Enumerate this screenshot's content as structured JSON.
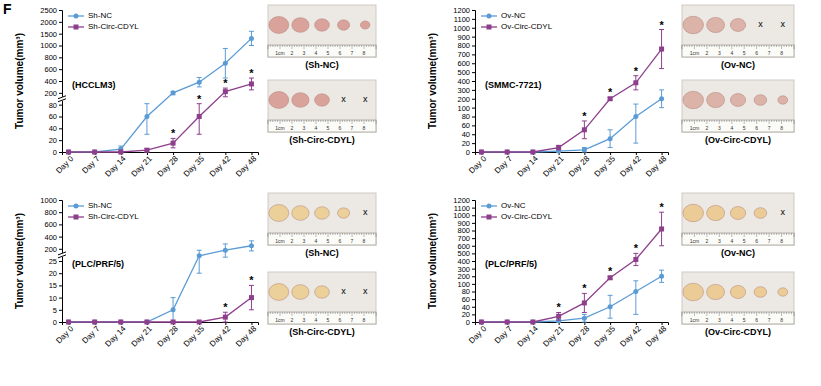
{
  "figure_label": "F",
  "chart_data": [
    {
      "type": "line",
      "title": "(HCCLM3)",
      "y_label": "Tumor volume(mm³)",
      "categories": [
        "Day 0",
        "Day 7",
        "Day 14",
        "Day 21",
        "Day 28",
        "Day 35",
        "Day 42",
        "Day 48"
      ],
      "ylim": [
        0,
        2500
      ],
      "yticks": [
        0,
        20,
        40,
        60,
        80,
        200,
        400,
        600,
        800,
        1000,
        1500,
        2000,
        2500
      ],
      "legend": "upper left",
      "series": [
        {
          "name": "Sh-NC",
          "color": "#5b9bd5",
          "marker": "circle",
          "values": [
            0,
            0,
            5,
            60,
            200,
            380,
            700,
            1300
          ],
          "errors": [
            0,
            0,
            5,
            30,
            20,
            80,
            250,
            300
          ]
        },
        {
          "name": "Sh-Circ-CDYL",
          "color": "#8e3f8c",
          "marker": "square",
          "values": [
            0,
            0,
            0,
            3,
            15,
            60,
            220,
            350
          ],
          "errors": [
            0,
            0,
            0,
            3,
            8,
            30,
            60,
            100
          ]
        }
      ],
      "annotations": [
        {
          "text": "*",
          "x": "Day 28"
        },
        {
          "text": "*",
          "x": "Day 35"
        },
        {
          "text": "*",
          "x": "Day 42"
        },
        {
          "text": "*",
          "x": "Day 48"
        }
      ]
    },
    {
      "type": "line",
      "title": "(SMMC-7721)",
      "y_label": "Tumor volume(mm³)",
      "categories": [
        "Day 0",
        "Day 7",
        "Day 14",
        "Day 21",
        "Day 28",
        "Day 35",
        "Day 42",
        "Day 48"
      ],
      "ylim": [
        0,
        1200
      ],
      "yticks": [
        0,
        20,
        40,
        60,
        80,
        100,
        200,
        300,
        400,
        500,
        600,
        700,
        800,
        900,
        1000,
        1100,
        1200
      ],
      "legend": "upper left",
      "series": [
        {
          "name": "Ov-NC",
          "color": "#5b9bd5",
          "marker": "circle",
          "values": [
            0,
            0,
            0,
            2,
            5,
            30,
            80,
            200
          ],
          "errors": [
            0,
            0,
            0,
            2,
            5,
            20,
            60,
            100
          ]
        },
        {
          "name": "Ov-Circ-CDYL",
          "color": "#8e3f8c",
          "marker": "square",
          "values": [
            0,
            0,
            0,
            10,
            50,
            200,
            380,
            760
          ],
          "errors": [
            0,
            0,
            0,
            5,
            20,
            15,
            80,
            220
          ]
        }
      ],
      "annotations": [
        {
          "text": "*",
          "x": "Day 28"
        },
        {
          "text": "*",
          "x": "Day 35"
        },
        {
          "text": "*",
          "x": "Day 42"
        },
        {
          "text": "*",
          "x": "Day 48"
        }
      ]
    },
    {
      "type": "line",
      "title": "(PLC/PRF/5)",
      "y_label": "Tumor volume(mm³)",
      "categories": [
        "Day 0",
        "Day 7",
        "Day 14",
        "Day 21",
        "Day 28",
        "Day 35",
        "Day 42",
        "Day 48"
      ],
      "ylim": [
        0,
        1000
      ],
      "yticks": [
        0,
        5,
        10,
        15,
        20,
        25,
        200,
        400,
        600,
        800,
        1000
      ],
      "legend": "upper left",
      "series": [
        {
          "name": "Sh-NC",
          "color": "#5b9bd5",
          "marker": "circle",
          "values": [
            0,
            0,
            0,
            0,
            5,
            100,
            180,
            250
          ],
          "errors": [
            0,
            0,
            0,
            0,
            5,
            80,
            100,
            80
          ]
        },
        {
          "name": "Sh-Circ-CDYL",
          "color": "#8e3f8c",
          "marker": "square",
          "values": [
            0,
            0,
            0,
            0,
            0,
            0,
            2,
            10
          ],
          "errors": [
            0,
            0,
            0,
            0,
            0,
            0,
            2,
            5
          ]
        }
      ],
      "annotations": [
        {
          "text": "*",
          "x": "Day 42"
        },
        {
          "text": "*",
          "x": "Day 48"
        }
      ]
    },
    {
      "type": "line",
      "title": "(PLC/PRF/5)",
      "y_label": "Tumor volume(mm³)",
      "categories": [
        "Day 0",
        "Day 7",
        "Day 14",
        "Day 21",
        "Day 28",
        "Day 35",
        "Day 42",
        "Day 48"
      ],
      "ylim": [
        0,
        1200
      ],
      "yticks": [
        0,
        20,
        40,
        60,
        80,
        100,
        200,
        300,
        400,
        500,
        600,
        700,
        800,
        900,
        1000,
        1100,
        1200
      ],
      "legend": "upper left",
      "series": [
        {
          "name": "Ov-NC",
          "color": "#5b9bd5",
          "marker": "circle",
          "values": [
            0,
            0,
            0,
            3,
            10,
            40,
            80,
            200
          ],
          "errors": [
            0,
            0,
            0,
            3,
            10,
            30,
            60,
            80
          ]
        },
        {
          "name": "Ov-Circ-CDYL",
          "color": "#8e3f8c",
          "marker": "square",
          "values": [
            0,
            0,
            0,
            15,
            50,
            180,
            420,
            820
          ],
          "errors": [
            0,
            0,
            0,
            10,
            25,
            20,
            80,
            220
          ]
        }
      ],
      "annotations": [
        {
          "text": "*",
          "x": "Day 21"
        },
        {
          "text": "*",
          "x": "Day 28"
        },
        {
          "text": "*",
          "x": "Day 35"
        },
        {
          "text": "*",
          "x": "Day 42"
        },
        {
          "text": "*",
          "x": "Day 48"
        }
      ]
    }
  ],
  "photos": [
    {
      "caption": "(Sh-NC)",
      "slots": [
        null,
        null,
        null,
        null,
        null
      ]
    },
    {
      "caption": "(Sh-Circ-CDYL)",
      "slots": [
        null,
        null,
        null,
        "x",
        "x"
      ]
    },
    {
      "caption": "(Ov-NC)",
      "slots": [
        null,
        null,
        null,
        "x",
        "x"
      ]
    },
    {
      "caption": "(Ov-Circ-CDYL)",
      "slots": [
        null,
        null,
        null,
        null,
        null
      ]
    },
    {
      "caption": "(Sh-NC)",
      "slots": [
        null,
        null,
        null,
        null,
        "x"
      ]
    },
    {
      "caption": "(Sh-Circ-CDYL)",
      "slots": [
        null,
        null,
        null,
        "x",
        "x"
      ]
    },
    {
      "caption": "(Ov-NC)",
      "slots": [
        null,
        null,
        null,
        null,
        "x"
      ]
    },
    {
      "caption": "(Ov-Circ-CDYL)",
      "slots": [
        null,
        null,
        null,
        null,
        null
      ]
    }
  ],
  "ruler_labels": [
    "1cm",
    "2",
    "3",
    "4",
    "5",
    "6",
    "7",
    "8"
  ]
}
